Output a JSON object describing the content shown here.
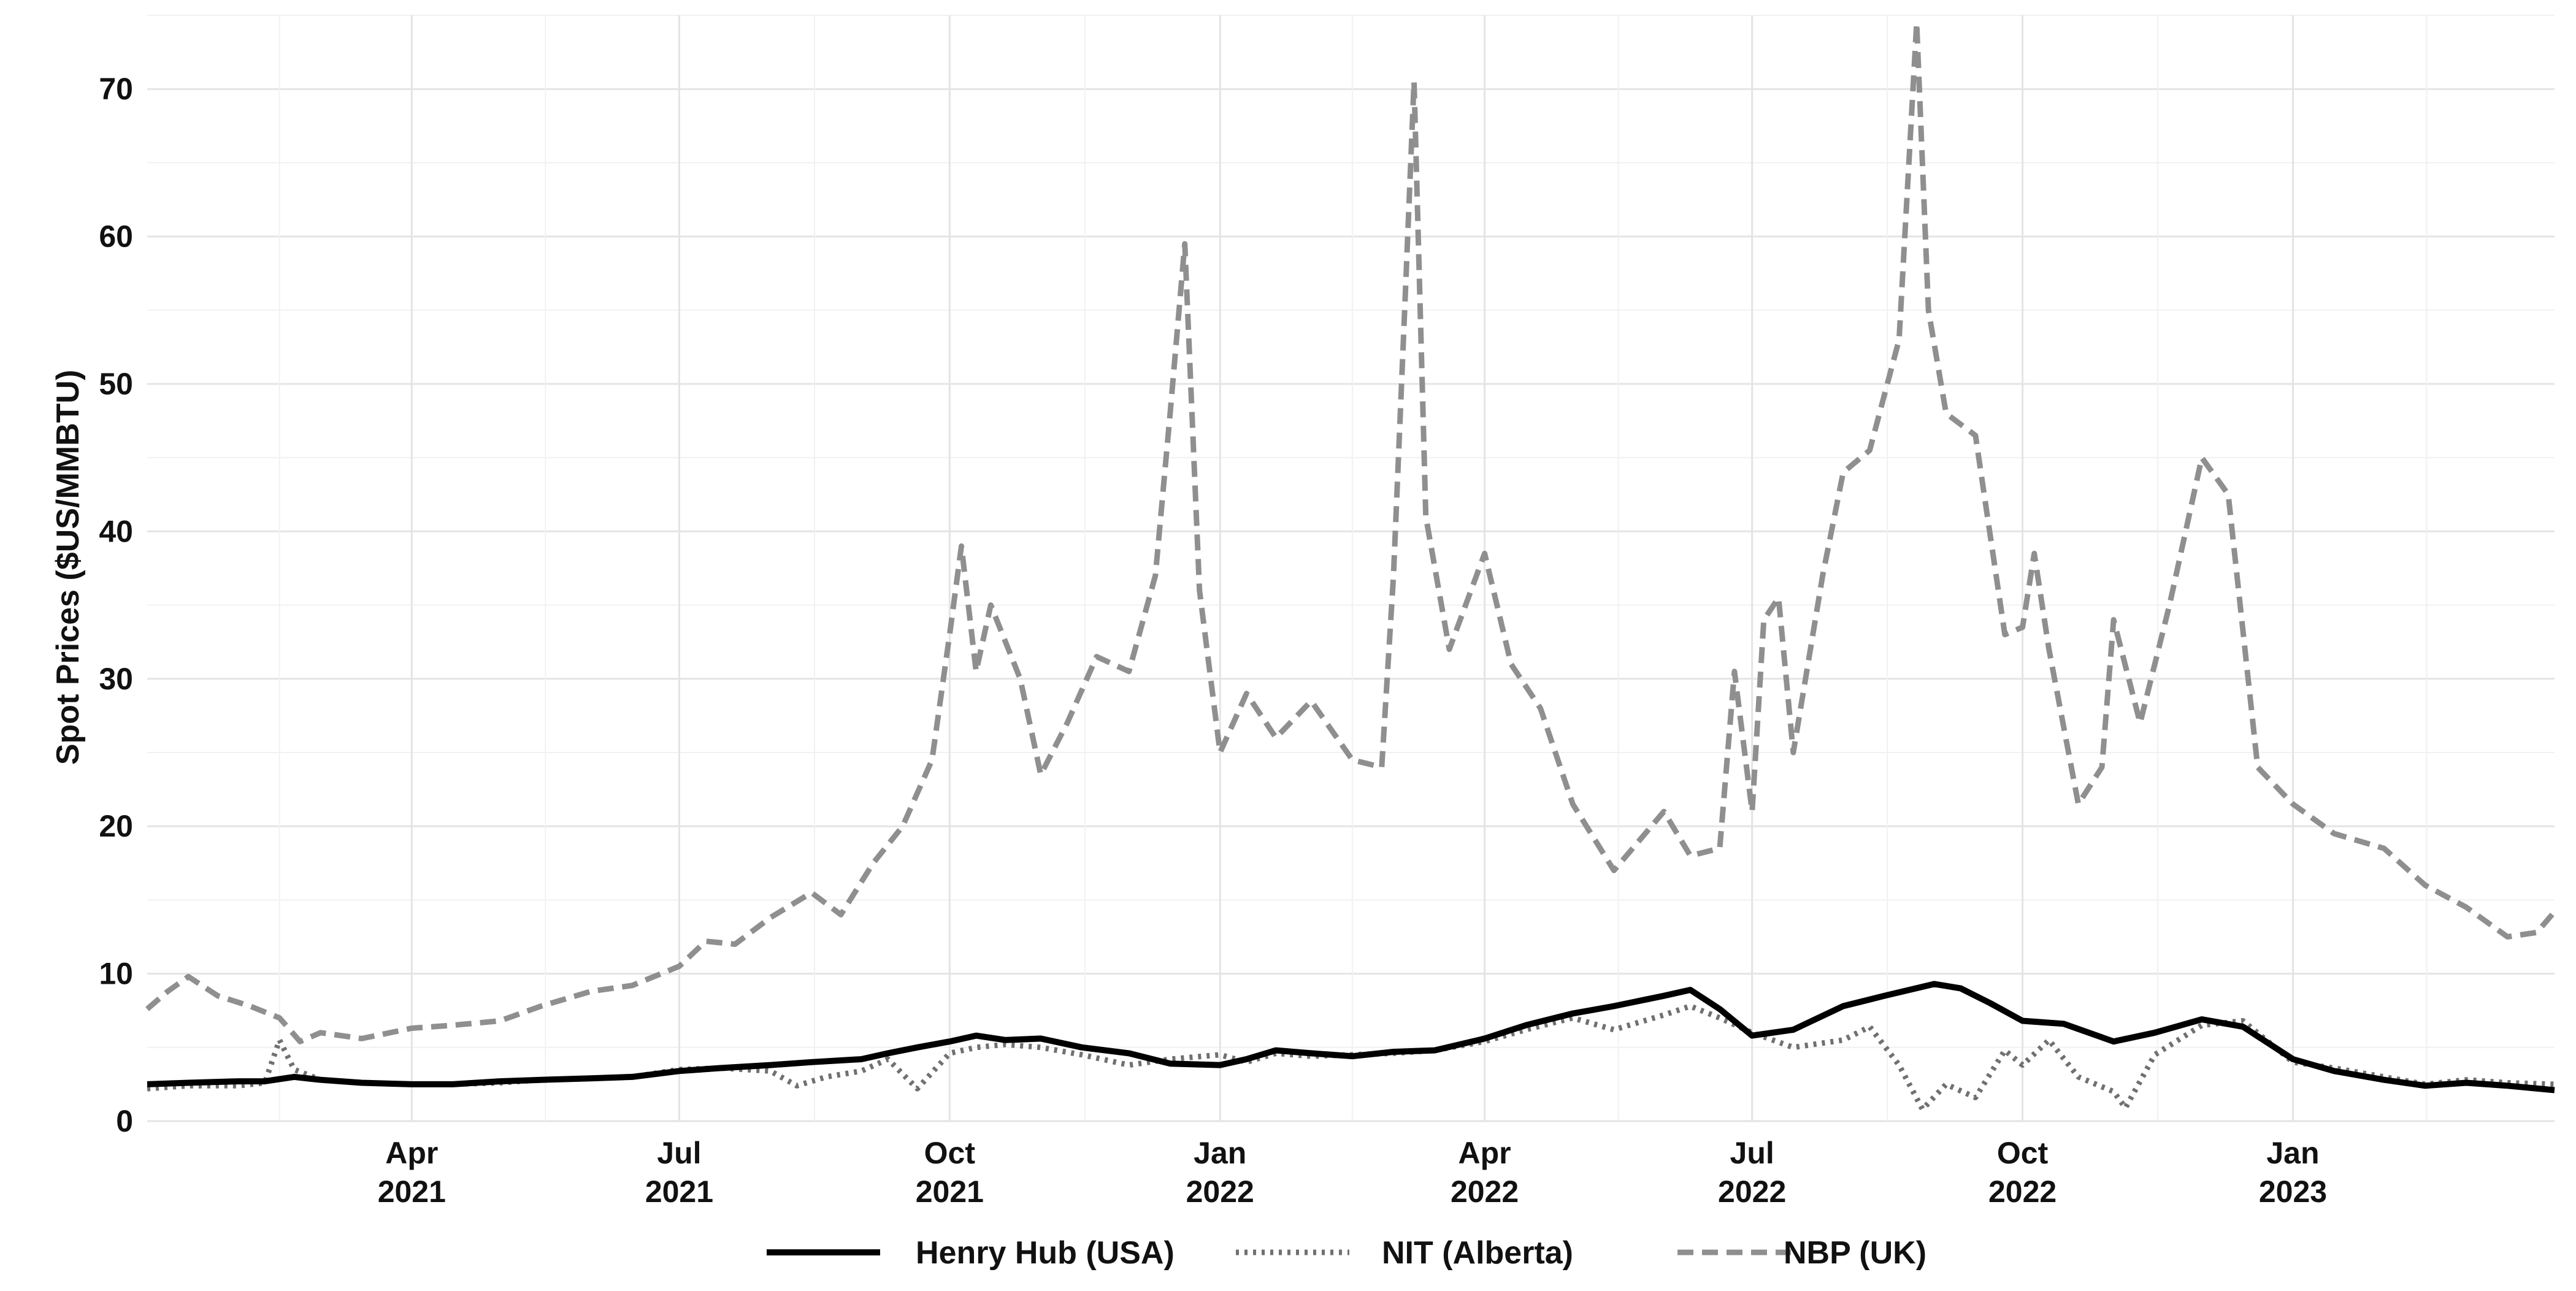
{
  "chart_data": {
    "type": "line",
    "title": "",
    "xlabel": "",
    "ylabel": "Spot Prices ($US/MMBTU)",
    "ylim": [
      0,
      75
    ],
    "xlim": [
      "2021-01-01",
      "2023-03-31"
    ],
    "y_ticks": [
      0,
      10,
      20,
      30,
      40,
      50,
      60,
      70
    ],
    "x_ticks": [
      {
        "date": "2021-04-01",
        "label_line1": "Apr",
        "label_line2": "2021"
      },
      {
        "date": "2021-07-01",
        "label_line1": "Jul",
        "label_line2": "2021"
      },
      {
        "date": "2021-10-01",
        "label_line1": "Oct",
        "label_line2": "2021"
      },
      {
        "date": "2022-01-01",
        "label_line1": "Jan",
        "label_line2": "2022"
      },
      {
        "date": "2022-04-01",
        "label_line1": "Apr",
        "label_line2": "2022"
      },
      {
        "date": "2022-07-01",
        "label_line1": "Jul",
        "label_line2": "2022"
      },
      {
        "date": "2022-10-01",
        "label_line1": "Oct",
        "label_line2": "2022"
      },
      {
        "date": "2023-01-01",
        "label_line1": "Jan",
        "label_line2": "2023"
      }
    ],
    "grid": true,
    "legend_position": "bottom",
    "series": [
      {
        "name": "Henry Hub (USA)",
        "color": "#000000",
        "style": "solid",
        "points": [
          [
            "2021-01-01",
            2.5
          ],
          [
            "2021-01-15",
            2.6
          ],
          [
            "2021-02-01",
            2.7
          ],
          [
            "2021-02-10",
            2.7
          ],
          [
            "2021-02-20",
            3.0
          ],
          [
            "2021-03-01",
            2.8
          ],
          [
            "2021-03-15",
            2.6
          ],
          [
            "2021-04-01",
            2.5
          ],
          [
            "2021-04-15",
            2.5
          ],
          [
            "2021-05-01",
            2.7
          ],
          [
            "2021-05-15",
            2.8
          ],
          [
            "2021-06-01",
            2.9
          ],
          [
            "2021-06-15",
            3.0
          ],
          [
            "2021-07-01",
            3.4
          ],
          [
            "2021-07-15",
            3.6
          ],
          [
            "2021-08-01",
            3.8
          ],
          [
            "2021-08-15",
            4.0
          ],
          [
            "2021-09-01",
            4.2
          ],
          [
            "2021-09-10",
            4.6
          ],
          [
            "2021-09-20",
            5.0
          ],
          [
            "2021-10-01",
            5.4
          ],
          [
            "2021-10-10",
            5.8
          ],
          [
            "2021-10-20",
            5.5
          ],
          [
            "2021-11-01",
            5.6
          ],
          [
            "2021-11-15",
            5.0
          ],
          [
            "2021-12-01",
            4.6
          ],
          [
            "2021-12-15",
            3.9
          ],
          [
            "2022-01-01",
            3.8
          ],
          [
            "2022-01-10",
            4.2
          ],
          [
            "2022-01-20",
            4.8
          ],
          [
            "2022-02-01",
            4.6
          ],
          [
            "2022-02-15",
            4.4
          ],
          [
            "2022-03-01",
            4.7
          ],
          [
            "2022-03-15",
            4.8
          ],
          [
            "2022-04-01",
            5.6
          ],
          [
            "2022-04-15",
            6.5
          ],
          [
            "2022-05-01",
            7.3
          ],
          [
            "2022-05-15",
            7.8
          ],
          [
            "2022-06-01",
            8.5
          ],
          [
            "2022-06-10",
            8.9
          ],
          [
            "2022-06-20",
            7.6
          ],
          [
            "2022-07-01",
            5.8
          ],
          [
            "2022-07-15",
            6.2
          ],
          [
            "2022-08-01",
            7.8
          ],
          [
            "2022-08-15",
            8.5
          ],
          [
            "2022-09-01",
            9.3
          ],
          [
            "2022-09-10",
            9.0
          ],
          [
            "2022-09-20",
            8.0
          ],
          [
            "2022-10-01",
            6.8
          ],
          [
            "2022-10-15",
            6.6
          ],
          [
            "2022-11-01",
            5.4
          ],
          [
            "2022-11-15",
            6.0
          ],
          [
            "2022-12-01",
            6.9
          ],
          [
            "2022-12-15",
            6.4
          ],
          [
            "2023-01-01",
            4.2
          ],
          [
            "2023-01-15",
            3.4
          ],
          [
            "2023-02-01",
            2.8
          ],
          [
            "2023-02-15",
            2.4
          ],
          [
            "2023-03-01",
            2.6
          ],
          [
            "2023-03-15",
            2.4
          ],
          [
            "2023-03-31",
            2.1
          ]
        ]
      },
      {
        "name": "NIT (Alberta)",
        "color": "#707070",
        "style": "dotted",
        "points": [
          [
            "2021-01-01",
            2.2
          ],
          [
            "2021-01-15",
            2.4
          ],
          [
            "2021-02-01",
            2.4
          ],
          [
            "2021-02-10",
            2.6
          ],
          [
            "2021-02-15",
            5.5
          ],
          [
            "2021-02-20",
            3.5
          ],
          [
            "2021-03-01",
            2.8
          ],
          [
            "2021-03-15",
            2.6
          ],
          [
            "2021-04-01",
            2.5
          ],
          [
            "2021-04-15",
            2.5
          ],
          [
            "2021-05-01",
            2.6
          ],
          [
            "2021-05-15",
            2.8
          ],
          [
            "2021-06-01",
            2.9
          ],
          [
            "2021-06-15",
            3.0
          ],
          [
            "2021-07-01",
            3.5
          ],
          [
            "2021-07-15",
            3.6
          ],
          [
            "2021-08-01",
            3.4
          ],
          [
            "2021-08-10",
            2.4
          ],
          [
            "2021-08-20",
            3.0
          ],
          [
            "2021-09-01",
            3.4
          ],
          [
            "2021-09-10",
            4.2
          ],
          [
            "2021-09-20",
            2.2
          ],
          [
            "2021-10-01",
            4.6
          ],
          [
            "2021-10-10",
            5.0
          ],
          [
            "2021-10-20",
            5.2
          ],
          [
            "2021-11-01",
            5.0
          ],
          [
            "2021-11-15",
            4.5
          ],
          [
            "2021-12-01",
            3.8
          ],
          [
            "2021-12-15",
            4.2
          ],
          [
            "2022-01-01",
            4.5
          ],
          [
            "2022-01-10",
            4.0
          ],
          [
            "2022-01-20",
            4.6
          ],
          [
            "2022-02-01",
            4.4
          ],
          [
            "2022-02-15",
            4.5
          ],
          [
            "2022-03-01",
            4.6
          ],
          [
            "2022-03-15",
            4.8
          ],
          [
            "2022-04-01",
            5.4
          ],
          [
            "2022-04-15",
            6.2
          ],
          [
            "2022-05-01",
            7.0
          ],
          [
            "2022-05-15",
            6.2
          ],
          [
            "2022-06-01",
            7.2
          ],
          [
            "2022-06-10",
            7.8
          ],
          [
            "2022-06-20",
            7.0
          ],
          [
            "2022-07-01",
            6.0
          ],
          [
            "2022-07-15",
            5.0
          ],
          [
            "2022-08-01",
            5.5
          ],
          [
            "2022-08-10",
            6.4
          ],
          [
            "2022-08-20",
            3.8
          ],
          [
            "2022-08-28",
            0.8
          ],
          [
            "2022-09-05",
            2.5
          ],
          [
            "2022-09-15",
            1.6
          ],
          [
            "2022-09-25",
            4.8
          ],
          [
            "2022-10-01",
            3.8
          ],
          [
            "2022-10-10",
            5.5
          ],
          [
            "2022-10-20",
            3.0
          ],
          [
            "2022-11-01",
            2.0
          ],
          [
            "2022-11-05",
            0.9
          ],
          [
            "2022-11-15",
            4.5
          ],
          [
            "2022-12-01",
            6.5
          ],
          [
            "2022-12-15",
            6.8
          ],
          [
            "2023-01-01",
            4.0
          ],
          [
            "2023-01-15",
            3.6
          ],
          [
            "2023-02-01",
            3.0
          ],
          [
            "2023-02-15",
            2.5
          ],
          [
            "2023-03-01",
            2.8
          ],
          [
            "2023-03-15",
            2.6
          ],
          [
            "2023-03-31",
            2.5
          ]
        ]
      },
      {
        "name": "NBP (UK)",
        "color": "#8f8f8f",
        "style": "dashed",
        "points": [
          [
            "2021-01-01",
            7.6
          ],
          [
            "2021-01-08",
            8.8
          ],
          [
            "2021-01-15",
            9.8
          ],
          [
            "2021-01-25",
            8.5
          ],
          [
            "2021-02-05",
            7.8
          ],
          [
            "2021-02-15",
            7.0
          ],
          [
            "2021-02-22",
            5.4
          ],
          [
            "2021-03-01",
            6.0
          ],
          [
            "2021-03-15",
            5.6
          ],
          [
            "2021-04-01",
            6.3
          ],
          [
            "2021-04-15",
            6.5
          ],
          [
            "2021-05-01",
            6.8
          ],
          [
            "2021-05-15",
            7.8
          ],
          [
            "2021-06-01",
            8.8
          ],
          [
            "2021-06-15",
            9.2
          ],
          [
            "2021-07-01",
            10.5
          ],
          [
            "2021-07-10",
            12.2
          ],
          [
            "2021-07-20",
            12.0
          ],
          [
            "2021-08-01",
            13.8
          ],
          [
            "2021-08-15",
            15.5
          ],
          [
            "2021-08-25",
            14.0
          ],
          [
            "2021-09-05",
            17.5
          ],
          [
            "2021-09-15",
            20.0
          ],
          [
            "2021-09-25",
            24.5
          ],
          [
            "2021-10-01",
            33.0
          ],
          [
            "2021-10-05",
            39.0
          ],
          [
            "2021-10-10",
            30.5
          ],
          [
            "2021-10-15",
            35.0
          ],
          [
            "2021-10-25",
            30.0
          ],
          [
            "2021-11-01",
            23.5
          ],
          [
            "2021-11-10",
            27.0
          ],
          [
            "2021-11-20",
            31.5
          ],
          [
            "2021-12-01",
            30.5
          ],
          [
            "2021-12-10",
            37.0
          ],
          [
            "2021-12-15",
            48.0
          ],
          [
            "2021-12-20",
            59.5
          ],
          [
            "2021-12-25",
            36.0
          ],
          [
            "2022-01-01",
            25.0
          ],
          [
            "2022-01-10",
            29.0
          ],
          [
            "2022-01-20",
            26.0
          ],
          [
            "2022-02-01",
            28.5
          ],
          [
            "2022-02-15",
            24.5
          ],
          [
            "2022-02-25",
            24.0
          ],
          [
            "2022-03-01",
            37.0
          ],
          [
            "2022-03-05",
            56.0
          ],
          [
            "2022-03-08",
            70.5
          ],
          [
            "2022-03-12",
            41.0
          ],
          [
            "2022-03-20",
            32.0
          ],
          [
            "2022-04-01",
            38.5
          ],
          [
            "2022-04-10",
            31.0
          ],
          [
            "2022-04-20",
            28.0
          ],
          [
            "2022-05-01",
            21.5
          ],
          [
            "2022-05-15",
            17.0
          ],
          [
            "2022-06-01",
            21.0
          ],
          [
            "2022-06-10",
            18.0
          ],
          [
            "2022-06-20",
            18.5
          ],
          [
            "2022-06-25",
            30.5
          ],
          [
            "2022-07-01",
            21.0
          ],
          [
            "2022-07-05",
            34.0
          ],
          [
            "2022-07-10",
            35.5
          ],
          [
            "2022-07-15",
            25.0
          ],
          [
            "2022-07-25",
            37.0
          ],
          [
            "2022-08-01",
            44.0
          ],
          [
            "2022-08-10",
            45.5
          ],
          [
            "2022-08-20",
            53.0
          ],
          [
            "2022-08-26",
            74.5
          ],
          [
            "2022-08-30",
            55.0
          ],
          [
            "2022-09-05",
            48.0
          ],
          [
            "2022-09-15",
            46.5
          ],
          [
            "2022-09-25",
            33.0
          ],
          [
            "2022-10-01",
            33.5
          ],
          [
            "2022-10-05",
            38.5
          ],
          [
            "2022-10-10",
            32.0
          ],
          [
            "2022-10-20",
            21.5
          ],
          [
            "2022-10-28",
            24.0
          ],
          [
            "2022-11-01",
            34.0
          ],
          [
            "2022-11-10",
            27.0
          ],
          [
            "2022-11-20",
            35.0
          ],
          [
            "2022-12-01",
            45.0
          ],
          [
            "2022-12-10",
            42.5
          ],
          [
            "2022-12-20",
            24.0
          ],
          [
            "2023-01-01",
            21.5
          ],
          [
            "2023-01-15",
            19.5
          ],
          [
            "2023-02-01",
            18.5
          ],
          [
            "2023-02-15",
            16.0
          ],
          [
            "2023-03-01",
            14.5
          ],
          [
            "2023-03-15",
            12.5
          ],
          [
            "2023-03-25",
            12.8
          ],
          [
            "2023-03-31",
            14.2
          ]
        ]
      }
    ]
  }
}
